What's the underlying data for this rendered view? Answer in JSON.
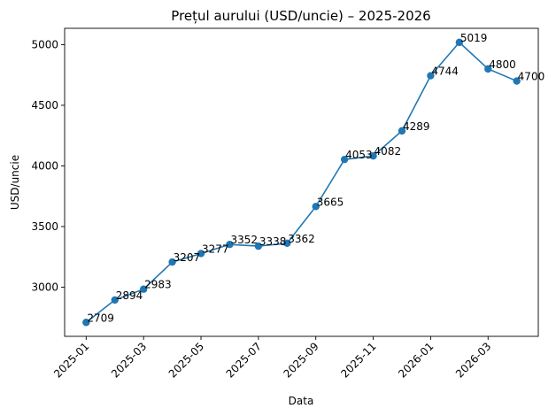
{
  "chart_data": {
    "type": "line",
    "title": "Prețul aurului (USD/uncie) – 2025-2026",
    "xlabel": "Data",
    "ylabel": "USD/uncie",
    "color": "#1f77b4",
    "grid": false,
    "legend": "none",
    "x": [
      "2025-01",
      "2025-02",
      "2025-03",
      "2025-04",
      "2025-05",
      "2025-06",
      "2025-07",
      "2025-08",
      "2025-09",
      "2025-10",
      "2025-11",
      "2025-12",
      "2026-01",
      "2026-02",
      "2026-03",
      "2026-04"
    ],
    "values": [
      2709,
      2894,
      2983,
      3207,
      3277,
      3352,
      3338,
      3362,
      3665,
      4053,
      4082,
      4289,
      4744,
      5019,
      4800,
      4700
    ],
    "x_ticks": [
      "2025-01",
      "2025-03",
      "2025-05",
      "2025-07",
      "2025-09",
      "2025-11",
      "2026-01",
      "2026-03"
    ],
    "y_ticks": [
      3000,
      3500,
      4000,
      4500,
      5000
    ],
    "ylim": [
      2594,
      5135
    ]
  }
}
